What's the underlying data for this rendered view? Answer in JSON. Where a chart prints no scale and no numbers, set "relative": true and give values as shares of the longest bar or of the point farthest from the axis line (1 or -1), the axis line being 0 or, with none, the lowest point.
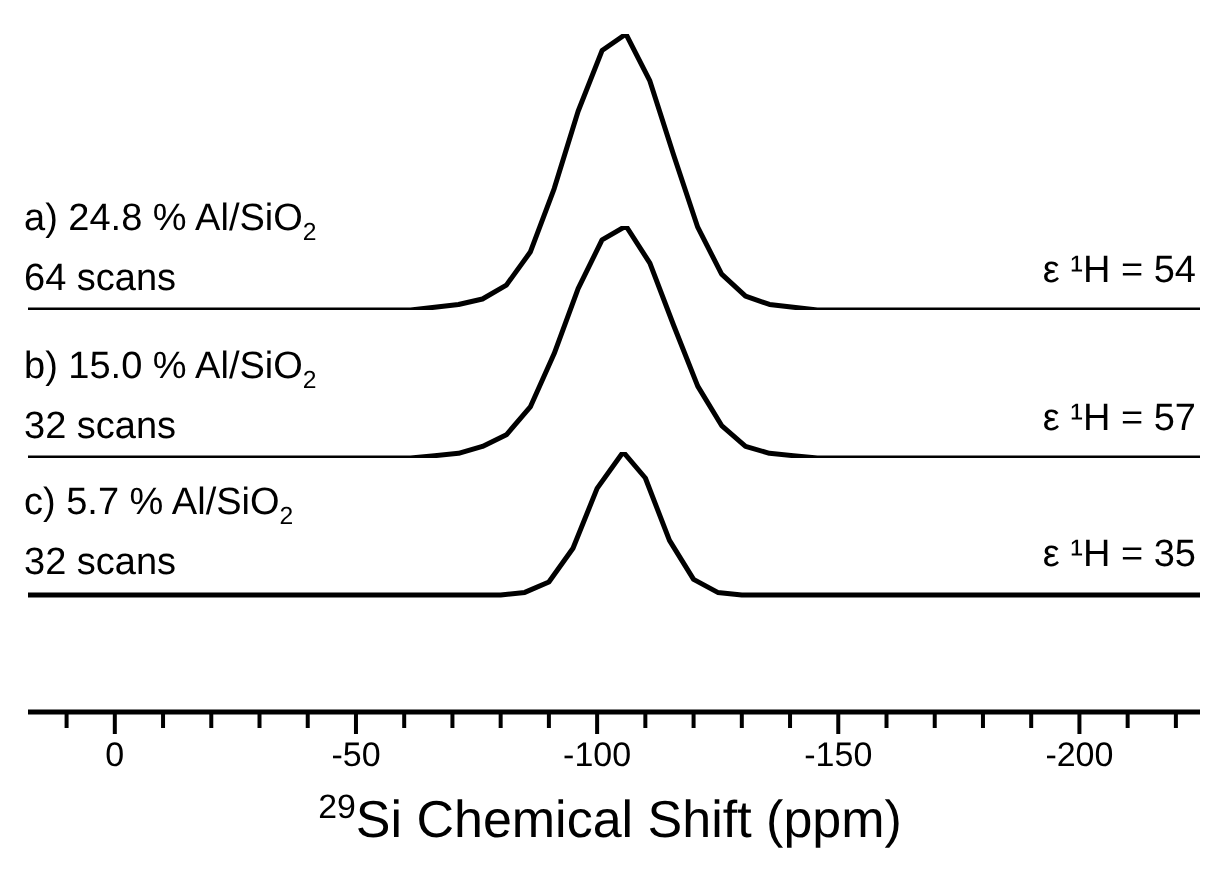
{
  "chart_data": [
    {
      "type": "line",
      "relative": true,
      "tick_labels": false,
      "color": "#000000",
      "annotations": [
        "a) 24.8 % Al/SiO$_{2}$",
        "64 scans",
        "ε ¹H = 54"
      ],
      "categories": [
        null,
        null,
        null,
        null,
        null,
        null,
        null,
        null,
        null,
        null,
        null,
        null,
        null,
        null,
        null,
        null,
        null,
        null,
        null,
        null,
        null,
        null,
        null,
        null,
        null,
        null,
        null,
        null,
        null,
        null,
        null,
        null,
        null,
        null,
        null,
        null,
        null,
        null,
        null,
        null,
        null,
        null,
        null,
        null,
        null,
        null,
        null,
        null,
        null,
        null
      ],
      "values": [
        0,
        0,
        0,
        0,
        0,
        0,
        0,
        0,
        0,
        0,
        0,
        0,
        0,
        0,
        0,
        0,
        0,
        0.01,
        0.02,
        0.04,
        0.09,
        0.21,
        0.44,
        0.72,
        0.94,
        1,
        0.83,
        0.56,
        0.3,
        0.13,
        0.05,
        0.02,
        0.01,
        0,
        0,
        0,
        0,
        0,
        0,
        0,
        0,
        0,
        0,
        0,
        0,
        0,
        0,
        0,
        0,
        0
      ]
    },
    {
      "type": "line",
      "relative": true,
      "tick_labels": false,
      "color": "#000000",
      "annotations": [
        "b) 15.0 % Al/SiO$_{2}$",
        "32 scans",
        "ε ¹H = 57"
      ],
      "categories": [
        null,
        null,
        null,
        null,
        null,
        null,
        null,
        null,
        null,
        null,
        null,
        null,
        null,
        null,
        null,
        null,
        null,
        null,
        null,
        null,
        null,
        null,
        null,
        null,
        null,
        null,
        null,
        null,
        null,
        null,
        null,
        null,
        null,
        null,
        null,
        null,
        null,
        null,
        null,
        null,
        null,
        null,
        null,
        null,
        null,
        null,
        null,
        null,
        null,
        null
      ],
      "values": [
        0,
        0,
        0,
        0,
        0,
        0,
        0,
        0,
        0,
        0,
        0,
        0,
        0,
        0,
        0,
        0,
        0,
        0.01,
        0.02,
        0.05,
        0.1,
        0.22,
        0.45,
        0.73,
        0.94,
        1,
        0.84,
        0.57,
        0.31,
        0.14,
        0.05,
        0.02,
        0.01,
        0,
        0,
        0,
        0,
        0,
        0,
        0,
        0,
        0,
        0,
        0,
        0,
        0,
        0,
        0,
        0,
        0
      ]
    },
    {
      "type": "line",
      "relative": true,
      "tick_labels": "x",
      "xlim": [
        18,
        -225
      ],
      "color": "#000000",
      "xlabel": "$^{29}$Si Chemical Shift (ppm)",
      "xticks": [
        {
          "value": 10,
          "label": null
        },
        0,
        {
          "value": -10,
          "label": null
        },
        {
          "value": -20,
          "label": null
        },
        {
          "value": -30,
          "label": null
        },
        {
          "value": -40,
          "label": null
        },
        -50,
        {
          "value": -60,
          "label": null
        },
        {
          "value": -70,
          "label": null
        },
        {
          "value": -80,
          "label": null
        },
        {
          "value": -90,
          "label": null
        },
        -100,
        {
          "value": -110,
          "label": null
        },
        {
          "value": -120,
          "label": null
        },
        {
          "value": -130,
          "label": null
        },
        {
          "value": -140,
          "label": null
        },
        -150,
        {
          "value": -160,
          "label": null
        },
        {
          "value": -170,
          "label": null
        },
        {
          "value": -180,
          "label": null
        },
        {
          "value": -190,
          "label": null
        },
        -200,
        {
          "value": -210,
          "label": null
        },
        {
          "value": -220,
          "label": null
        }
      ],
      "annotations": [
        "c) 5.7 % Al/SiO$_{2}$",
        "32 scans",
        "ε ¹H = 35"
      ],
      "x": [
        18,
        -50,
        -80,
        -85,
        -90,
        -95,
        -100,
        -105.4,
        -110,
        -115,
        -120,
        -125,
        -130,
        -225
      ],
      "values": [
        0.45,
        0.45,
        0.45,
        0.46,
        0.5,
        0.63,
        0.86,
        1,
        0.9,
        0.66,
        0.51,
        0.46,
        0.45,
        0.45
      ]
    }
  ]
}
